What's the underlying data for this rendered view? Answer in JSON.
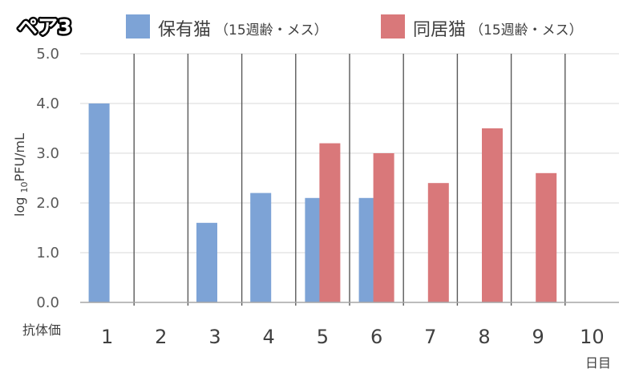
{
  "header": {
    "pair_title": "ペア3"
  },
  "legend": [
    {
      "label": "保有猫",
      "sub": "（15週齢・メス）",
      "color": "#7da3d6"
    },
    {
      "label": "同居猫",
      "sub": "（15週齢・メス）",
      "color": "#d9787a"
    }
  ],
  "chart_data": {
    "type": "bar",
    "categories": [
      "1",
      "2",
      "3",
      "4",
      "5",
      "6",
      "7",
      "8",
      "9",
      "10"
    ],
    "series": [
      {
        "name": "保有猫（15週齢・メス）",
        "color": "#7da3d6",
        "values": [
          4.0,
          null,
          1.6,
          2.2,
          2.1,
          2.1,
          null,
          null,
          null,
          null
        ]
      },
      {
        "name": "同居猫（15週齢・メス）",
        "color": "#d9787a",
        "values": [
          null,
          null,
          null,
          null,
          3.2,
          3.0,
          2.4,
          3.5,
          2.6,
          null
        ]
      }
    ],
    "ylim": [
      0,
      5
    ],
    "yticks": [
      "0.0",
      "1.0",
      "2.0",
      "3.0",
      "4.0",
      "5.0"
    ],
    "ylabel": "log10PFU/mL",
    "xlabel": "日目",
    "row_label": "抗体価",
    "grid": true
  }
}
